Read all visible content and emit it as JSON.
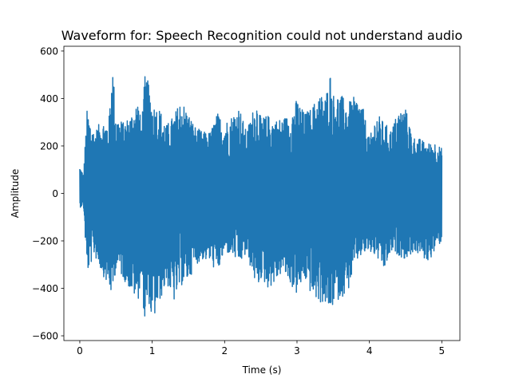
{
  "chart_data": {
    "type": "line",
    "title": "Waveform for: Speech Recognition could not understand audio",
    "xlabel": "Time (s)",
    "ylabel": "Amplitude",
    "xlim": [
      -0.22,
      5.25
    ],
    "ylim": [
      -620,
      620
    ],
    "xticks": [
      0,
      1,
      2,
      3,
      4,
      5
    ],
    "yticks": [
      -600,
      -400,
      -200,
      0,
      200,
      400,
      600
    ],
    "grid": false,
    "series_color": "#1f77b4",
    "envelope": {
      "x": [
        0.0,
        0.05,
        0.1,
        0.2,
        0.3,
        0.4,
        0.45,
        0.5,
        0.6,
        0.7,
        0.8,
        0.85,
        0.9,
        0.95,
        1.0,
        1.1,
        1.2,
        1.3,
        1.4,
        1.5,
        1.6,
        1.7,
        1.8,
        1.9,
        2.0,
        2.1,
        2.2,
        2.3,
        2.4,
        2.45,
        2.5,
        2.6,
        2.7,
        2.8,
        2.9,
        3.0,
        3.1,
        3.2,
        3.3,
        3.4,
        3.45,
        3.5,
        3.6,
        3.7,
        3.8,
        3.9,
        4.0,
        4.1,
        4.2,
        4.3,
        4.4,
        4.5,
        4.6,
        4.7,
        4.8,
        4.9,
        5.0
      ],
      "upper": [
        120,
        80,
        350,
        260,
        310,
        300,
        565,
        330,
        300,
        330,
        400,
        300,
        495,
        470,
        380,
        360,
        290,
        330,
        400,
        340,
        280,
        260,
        260,
        340,
        300,
        330,
        370,
        260,
        360,
        390,
        320,
        330,
        310,
        320,
        330,
        400,
        340,
        360,
        420,
        410,
        530,
        420,
        420,
        380,
        410,
        380,
        230,
        340,
        300,
        270,
        350,
        360,
        240,
        230,
        210,
        220,
        190
      ],
      "lower": [
        -60,
        -50,
        -340,
        -260,
        -330,
        -400,
        -440,
        -310,
        -360,
        -410,
        -460,
        -360,
        -565,
        -450,
        -555,
        -460,
        -380,
        -460,
        -390,
        -370,
        -300,
        -280,
        -290,
        -340,
        -250,
        -260,
        -300,
        -260,
        -350,
        -410,
        -360,
        -400,
        -380,
        -330,
        -380,
        -430,
        -360,
        -430,
        -460,
        -470,
        -520,
        -470,
        -440,
        -420,
        -300,
        -260,
        -250,
        -270,
        -330,
        -250,
        -260,
        -280,
        -250,
        -260,
        -290,
        -250,
        -200
      ]
    }
  }
}
